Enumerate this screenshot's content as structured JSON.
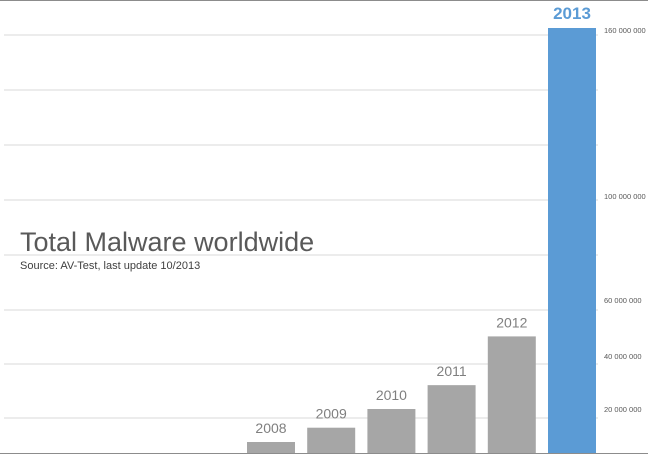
{
  "chart_data": {
    "type": "bar",
    "title": "Total Malware worldwide",
    "subtitle": "Source: AV-Test, last update 10/2013",
    "categories": [
      "2008",
      "2009",
      "2010",
      "2011",
      "2012",
      "2013"
    ],
    "values": [
      5000000,
      11500000,
      20000000,
      29000000,
      47000000,
      168000000
    ],
    "highlight_category": "2013",
    "colors": {
      "bar": "#a6a6a6",
      "highlight": "#5b9bd5",
      "label": "#7f7f7f",
      "highlight_label": "#5b9bd5",
      "grid": "#d9d9d9",
      "tick": "#595959"
    },
    "y_axis": {
      "position": "right",
      "scale": "nonlinear",
      "ticks": [
        {
          "value": 20000000,
          "label": "20 000 000"
        },
        {
          "value": 40000000,
          "label": "40 000 000"
        },
        {
          "value": 60000000,
          "label": "60 000 000"
        },
        {
          "value": 100000000,
          "label": "100 000 000"
        },
        {
          "value": 160000000,
          "label": "160 000 000"
        }
      ]
    },
    "grid": true
  }
}
